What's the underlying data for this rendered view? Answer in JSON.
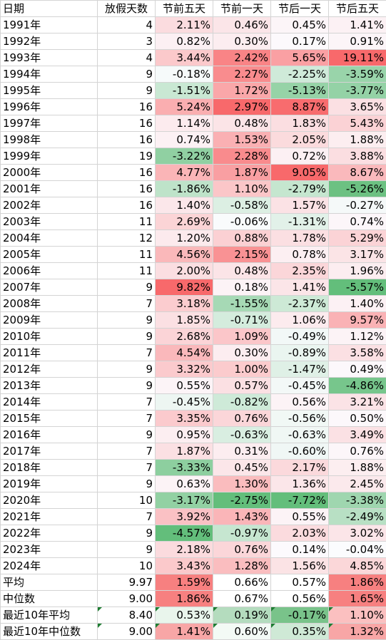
{
  "headers": [
    "日期",
    "放假天数",
    "节前五天",
    "节前一天",
    "节后一天",
    "节后五天"
  ],
  "rows": [
    [
      "1991年",
      "4",
      "2.11%",
      "0.46%",
      "0.45%",
      "1.41%"
    ],
    [
      "1992年",
      "3",
      "0.82%",
      "0.30%",
      "0.17%",
      "0.91%"
    ],
    [
      "1993年",
      "4",
      "3.44%",
      "2.42%",
      "5.65%",
      "19.11%"
    ],
    [
      "1994年",
      "9",
      "-0.18%",
      "2.27%",
      "-2.25%",
      "-3.59%"
    ],
    [
      "1995年",
      "9",
      "-1.51%",
      "1.72%",
      "-5.13%",
      "-3.77%"
    ],
    [
      "1996年",
      "16",
      "5.24%",
      "2.97%",
      "8.87%",
      "3.65%"
    ],
    [
      "1997年",
      "16",
      "1.14%",
      "0.48%",
      "1.83%",
      "5.43%"
    ],
    [
      "1998年",
      "16",
      "0.74%",
      "1.53%",
      "2.05%",
      "1.88%"
    ],
    [
      "1999年",
      "19",
      "-3.22%",
      "2.28%",
      "0.72%",
      "3.88%"
    ],
    [
      "2000年",
      "16",
      "4.77%",
      "1.87%",
      "9.05%",
      "8.67%"
    ],
    [
      "2001年",
      "16",
      "-1.86%",
      "1.10%",
      "-2.79%",
      "-5.26%"
    ],
    [
      "2002年",
      "16",
      "1.40%",
      "-0.58%",
      "1.57%",
      "-0.27%"
    ],
    [
      "2003年",
      "11",
      "2.69%",
      "-0.06%",
      "-1.31%",
      "0.74%"
    ],
    [
      "2004年",
      "12",
      "1.20%",
      "0.88%",
      "1.78%",
      "5.29%"
    ],
    [
      "2005年",
      "11",
      "4.56%",
      "2.15%",
      "0.78%",
      "3.17%"
    ],
    [
      "2006年",
      "11",
      "2.00%",
      "0.48%",
      "2.35%",
      "1.96%"
    ],
    [
      "2007年",
      "9",
      "9.82%",
      "0.18%",
      "1.41%",
      "-5.57%"
    ],
    [
      "2008年",
      "7",
      "3.18%",
      "-1.55%",
      "-2.37%",
      "1.40%"
    ],
    [
      "2009年",
      "9",
      "1.85%",
      "-0.71%",
      "1.06%",
      "9.57%"
    ],
    [
      "2010年",
      "9",
      "2.68%",
      "1.09%",
      "-0.49%",
      "1.12%"
    ],
    [
      "2011年",
      "7",
      "4.54%",
      "0.30%",
      "-0.89%",
      "3.58%"
    ],
    [
      "2012年",
      "9",
      "3.32%",
      "1.00%",
      "-1.47%",
      "0.49%"
    ],
    [
      "2013年",
      "9",
      "0.55%",
      "0.57%",
      "-0.45%",
      "-4.86%"
    ],
    [
      "2014年",
      "7",
      "-0.45%",
      "-0.82%",
      "0.56%",
      "3.21%"
    ],
    [
      "2015年",
      "7",
      "3.35%",
      "0.76%",
      "-0.56%",
      "0.50%"
    ],
    [
      "2016年",
      "9",
      "0.95%",
      "-0.63%",
      "-0.63%",
      "3.49%"
    ],
    [
      "2017年",
      "7",
      "1.87%",
      "0.31%",
      "-0.60%",
      "0.76%"
    ],
    [
      "2018年",
      "7",
      "-3.33%",
      "0.45%",
      "2.17%",
      "1.88%"
    ],
    [
      "2019年",
      "9",
      "0.63%",
      "1.30%",
      "1.36%",
      "2.45%"
    ],
    [
      "2020年",
      "10",
      "-3.17%",
      "-2.75%",
      "-7.72%",
      "-3.38%"
    ],
    [
      "2021年",
      "7",
      "3.92%",
      "1.43%",
      "0.55%",
      "-2.49%"
    ],
    [
      "2022年",
      "9",
      "-4.57%",
      "-0.97%",
      "2.03%",
      "3.02%"
    ],
    [
      "2023年",
      "9",
      "2.18%",
      "0.76%",
      "0.14%",
      "-0.04%"
    ],
    [
      "2024年",
      "10",
      "3.43%",
      "1.28%",
      "1.56%",
      "4.85%"
    ]
  ],
  "summary_rows": [
    {
      "cells": [
        "平均",
        "9.97",
        "1.59%",
        "0.66%",
        "0.57%",
        "1.86%"
      ],
      "flagged": false,
      "bg": [
        "#ffffff",
        "#ffffff",
        "#f78080",
        "#ffffff",
        "#ffffff",
        "#f78080"
      ]
    },
    {
      "cells": [
        "中位数",
        "9.00",
        "1.86%",
        "0.67%",
        "0.56%",
        "1.65%"
      ],
      "flagged": false,
      "bg": [
        "#ffffff",
        "#ffffff",
        "#f78080",
        "#ffffff",
        "#ffffff",
        "#f78080"
      ]
    },
    {
      "cells": [
        "最近10年平均",
        "8.40",
        "0.53%",
        "0.19%",
        "-0.17%",
        "1.10%"
      ],
      "flagged": true,
      "bg": [
        "#ffffff",
        "#ffffff",
        "#e9f5ec",
        "#b4dcbe",
        "#79c38a",
        "#fbc0c0"
      ]
    },
    {
      "cells": [
        "最近10年中位数",
        "9.00",
        "1.41%",
        "0.60%",
        "0.35%",
        "1.32%"
      ],
      "flagged": true,
      "bg": [
        "#ffffff",
        "#ffffff",
        "#f8a6a6",
        "#f3faf5",
        "#cfe9d6",
        "#f8a6a6"
      ]
    }
  ],
  "colors": {
    "positive_strong": "#f8696b",
    "negative_strong": "#63be7b",
    "neutral": "#fcfcff",
    "grid": "#d4d4d4",
    "flag_marker": "#1e7d32"
  }
}
